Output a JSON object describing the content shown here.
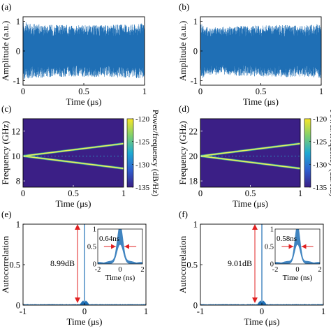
{
  "chart_data": [
    {
      "panel": "(a)",
      "type": "line",
      "xlabel": "Time (μs)",
      "ylabel": "Amplitude (a.u.)",
      "xlim": [
        0,
        1
      ],
      "ylim": [
        -1.15,
        1.15
      ],
      "xticks": [
        "0",
        "0.5",
        "1"
      ],
      "yticks": [
        "-1",
        "0",
        "1"
      ],
      "envelope": {
        "x": [
          0,
          0.05,
          0.15,
          0.3,
          0.5,
          0.7,
          0.85,
          1.0
        ],
        "y": [
          1.0,
          0.92,
          0.9,
          0.88,
          0.87,
          0.88,
          0.9,
          0.93
        ]
      },
      "series": [
        {
          "color": "#1f6fb5"
        }
      ]
    },
    {
      "panel": "(b)",
      "type": "line",
      "xlabel": "Time (μs)",
      "ylabel": "Amplitude (a.u.)",
      "xlim": [
        0,
        1
      ],
      "ylim": [
        -1.15,
        1.15
      ],
      "xticks": [
        "0",
        "0.5",
        "1"
      ],
      "yticks": [
        "-1",
        "0",
        "1"
      ],
      "envelope": {
        "x": [
          0,
          0.05,
          0.15,
          0.3,
          0.5,
          0.7,
          0.85,
          1.0
        ],
        "y": [
          1.0,
          0.82,
          0.8,
          0.84,
          0.86,
          0.88,
          0.86,
          0.92
        ]
      },
      "series": [
        {
          "color": "#1f6fb5"
        }
      ]
    },
    {
      "panel": "(c)",
      "type": "heatmap",
      "xlabel": "Time (μs)",
      "ylabel": "Frequency (GHz)",
      "xlim": [
        0,
        1
      ],
      "ylim": [
        7.5,
        13
      ],
      "xticks": [
        "0",
        "0.5",
        "1"
      ],
      "yticks": [
        "8",
        "10",
        "12"
      ],
      "lines": [
        {
          "x": [
            0,
            1
          ],
          "y": [
            10,
            11
          ]
        },
        {
          "x": [
            0,
            1
          ],
          "y": [
            10,
            9
          ]
        }
      ],
      "background_color": "#3b1f86",
      "line_color": "#e8f25a",
      "colorbar": {
        "label": "Power/frequency (dB/Hz)",
        "ticks": [
          "-120",
          "-125",
          "-130",
          "-135"
        ],
        "range": [
          -135,
          -120
        ]
      }
    },
    {
      "panel": "(d)",
      "type": "heatmap",
      "xlabel": "Time (μs)",
      "ylabel": "Frequency (GHz)",
      "xlim": [
        0,
        1
      ],
      "ylim": [
        17.5,
        23
      ],
      "xticks": [
        "0",
        "0.5",
        "1"
      ],
      "yticks": [
        "18",
        "20",
        "22"
      ],
      "lines": [
        {
          "x": [
            0,
            1
          ],
          "y": [
            20,
            21
          ]
        },
        {
          "x": [
            0,
            1
          ],
          "y": [
            20,
            19
          ]
        }
      ],
      "background_color": "#3b1f86",
      "line_color": "#e8f25a",
      "colorbar": {
        "label": "Power/frequency (dB/Hz)",
        "ticks": [
          "-120",
          "-125",
          "-130",
          "-135"
        ],
        "range": [
          -135,
          -120
        ]
      }
    },
    {
      "panel": "(e)",
      "type": "line",
      "xlabel": "Time (μs)",
      "ylabel": "Autocorrelation",
      "xlim": [
        -1,
        1
      ],
      "ylim": [
        0,
        1
      ],
      "xticks": [
        "-1",
        "0",
        "1"
      ],
      "yticks": [
        "0",
        "0.5",
        "1"
      ],
      "peak_x": 0,
      "peak_y": 1.0,
      "sidelobe_level": 0.035,
      "annotation": "8.99dB",
      "inset": {
        "xlabel": "Time (ns)",
        "xlim": [
          -2,
          2
        ],
        "ylim": [
          0,
          1
        ],
        "xticks": [
          "-2",
          "0",
          "2"
        ],
        "yticks": [
          "0",
          "0.5",
          "1"
        ],
        "width_label": "0.64ns",
        "fwhm_ns": 0.64
      },
      "series": [
        {
          "color": "#1f6fb5"
        }
      ]
    },
    {
      "panel": "(f)",
      "type": "line",
      "xlabel": "Time (μs)",
      "ylabel": "Autocorrelation",
      "xlim": [
        -1,
        1
      ],
      "ylim": [
        0,
        1
      ],
      "xticks": [
        "-1",
        "0",
        "1"
      ],
      "yticks": [
        "0",
        "0.5",
        "1"
      ],
      "peak_x": 0,
      "peak_y": 1.0,
      "sidelobe_level": 0.035,
      "annotation": "9.01dB",
      "inset": {
        "xlabel": "Time (ns)",
        "xlim": [
          -2,
          2
        ],
        "ylim": [
          0,
          1
        ],
        "xticks": [
          "-2",
          "0",
          "2"
        ],
        "yticks": [
          "0",
          "0.5",
          "1"
        ],
        "width_label": "0.58ns",
        "fwhm_ns": 0.58
      },
      "series": [
        {
          "color": "#1f6fb5"
        }
      ]
    }
  ]
}
